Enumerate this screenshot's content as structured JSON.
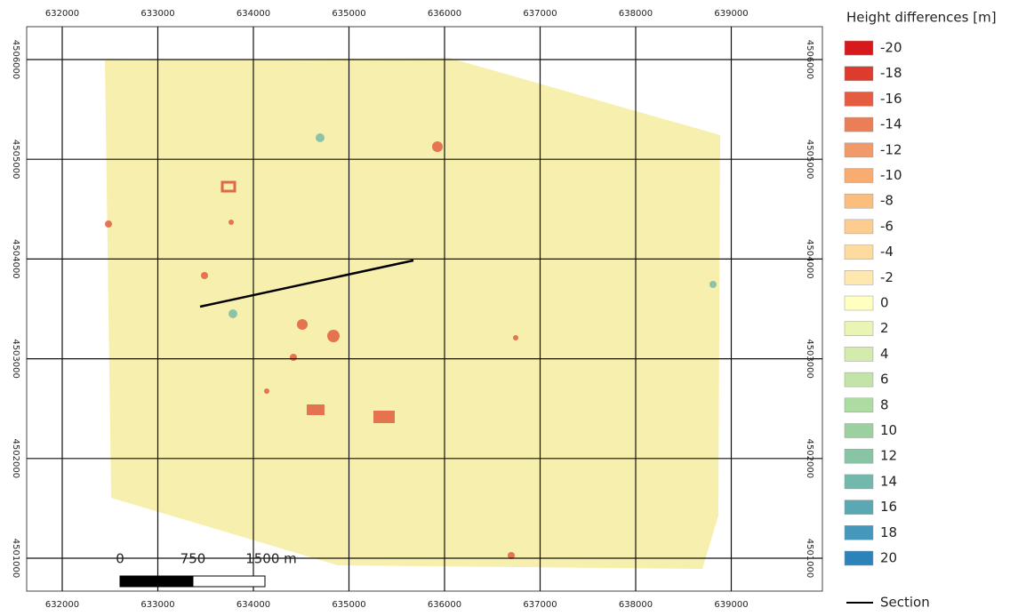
{
  "map": {
    "x_labels": [
      632000,
      633000,
      634000,
      635000,
      636000,
      637000,
      638000,
      639000
    ],
    "y_labels": [
      4506000,
      4505000,
      4504000,
      4503000,
      4502000,
      4501000
    ],
    "scale_bar": [
      "0",
      "750",
      "1500 m"
    ]
  },
  "legend": {
    "title": "Height differences [m]",
    "items": [
      {
        "label": "-20",
        "color": "#d7191c"
      },
      {
        "label": "-18",
        "color": "#de3b2f"
      },
      {
        "label": "-16",
        "color": "#e45d43"
      },
      {
        "label": "-14",
        "color": "#eb7e56"
      },
      {
        "label": "-12",
        "color": "#f2996a"
      },
      {
        "label": "-10",
        "color": "#f8ac6f"
      },
      {
        "label": "-8",
        "color": "#fbbe7d"
      },
      {
        "label": "-6",
        "color": "#fccd8e"
      },
      {
        "label": "-4",
        "color": "#fdda9e"
      },
      {
        "label": "-2",
        "color": "#fee8af"
      },
      {
        "label": "0",
        "color": "#ffffbf"
      },
      {
        "label": "2",
        "color": "#e8f5b4"
      },
      {
        "label": "4",
        "color": "#d3ecae"
      },
      {
        "label": "6",
        "color": "#c2e4a8"
      },
      {
        "label": "8",
        "color": "#addba2"
      },
      {
        "label": "10",
        "color": "#9bd19f"
      },
      {
        "label": "12",
        "color": "#88c5a4"
      },
      {
        "label": "14",
        "color": "#72b9ac"
      },
      {
        "label": "16",
        "color": "#5ba8b5"
      },
      {
        "label": "18",
        "color": "#4597bb"
      },
      {
        "label": "20",
        "color": "#2b83ba"
      }
    ],
    "section": "Section"
  }
}
